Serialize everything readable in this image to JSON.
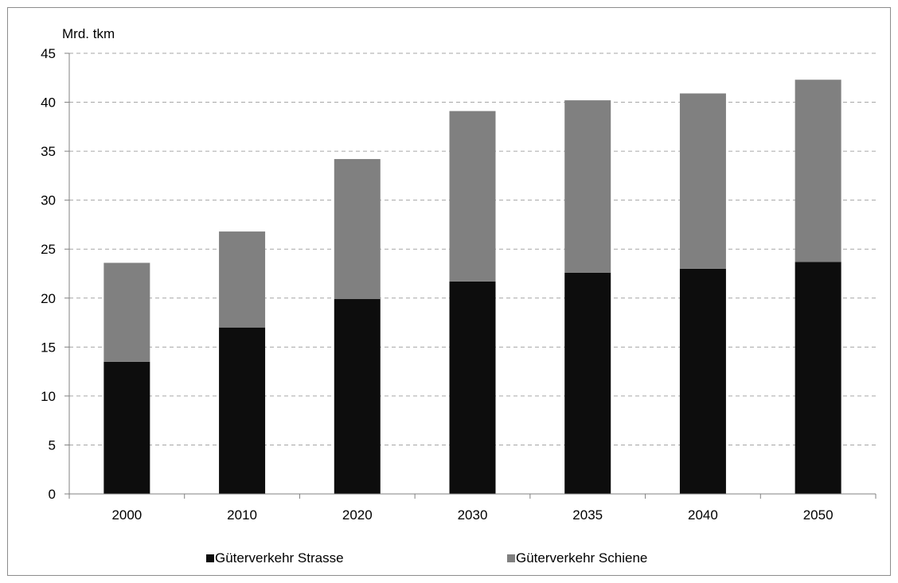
{
  "chart_data": {
    "type": "bar",
    "stacked": true,
    "title": "",
    "unit_label": "Mrd. tkm",
    "xlabel": "",
    "ylabel": "",
    "categories": [
      "2000",
      "2010",
      "2020",
      "2030",
      "2035",
      "2040",
      "2050"
    ],
    "series": [
      {
        "name": "Güterverkehr Strasse",
        "color": "#0d0d0d",
        "values": [
          13.5,
          17.0,
          19.9,
          21.7,
          22.6,
          23.0,
          23.7
        ]
      },
      {
        "name": "Güterverkehr Schiene",
        "color": "#808080",
        "values": [
          10.1,
          9.8,
          14.3,
          17.4,
          17.6,
          17.9,
          18.6
        ]
      }
    ],
    "ylim": [
      0,
      45
    ],
    "yticks": [
      0,
      5,
      10,
      15,
      20,
      25,
      30,
      35,
      40,
      45
    ],
    "grid": true,
    "legend_position": "bottom"
  }
}
